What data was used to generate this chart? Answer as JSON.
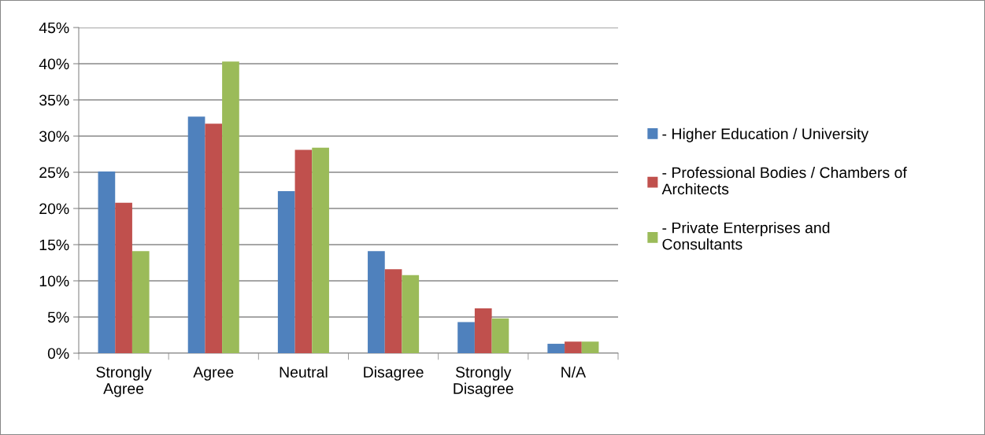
{
  "chart_data": {
    "type": "bar",
    "categories": [
      "Strongly\nAgree",
      "Agree",
      "Neutral",
      "Disagree",
      "Strongly\nDisagree",
      "N/A"
    ],
    "series": [
      {
        "name": "- Higher Education / University",
        "color": "#4f81bd",
        "values": [
          25.1,
          32.7,
          22.4,
          14.1,
          4.3,
          1.3
        ]
      },
      {
        "name": "- Professional Bodies / Chambers of\nArchitects",
        "color": "#c0504d",
        "values": [
          20.8,
          31.7,
          28.1,
          11.6,
          6.2,
          1.6
        ]
      },
      {
        "name": "- Private Enterprises and\nConsultants",
        "color": "#9bbb59",
        "values": [
          14.1,
          40.3,
          28.4,
          10.8,
          4.8,
          1.6
        ]
      }
    ],
    "ylim": [
      0,
      45
    ],
    "yticks": [
      {
        "value": 0,
        "label": "0%"
      },
      {
        "value": 5,
        "label": "5%"
      },
      {
        "value": 10,
        "label": "10%"
      },
      {
        "value": 15,
        "label": "15%"
      },
      {
        "value": 20,
        "label": "20%"
      },
      {
        "value": 25,
        "label": "25%"
      },
      {
        "value": 30,
        "label": "30%"
      },
      {
        "value": 35,
        "label": "35%"
      },
      {
        "value": 40,
        "label": "40%"
      },
      {
        "value": 45,
        "label": "45%"
      }
    ],
    "grid": "y",
    "legend": "right"
  }
}
